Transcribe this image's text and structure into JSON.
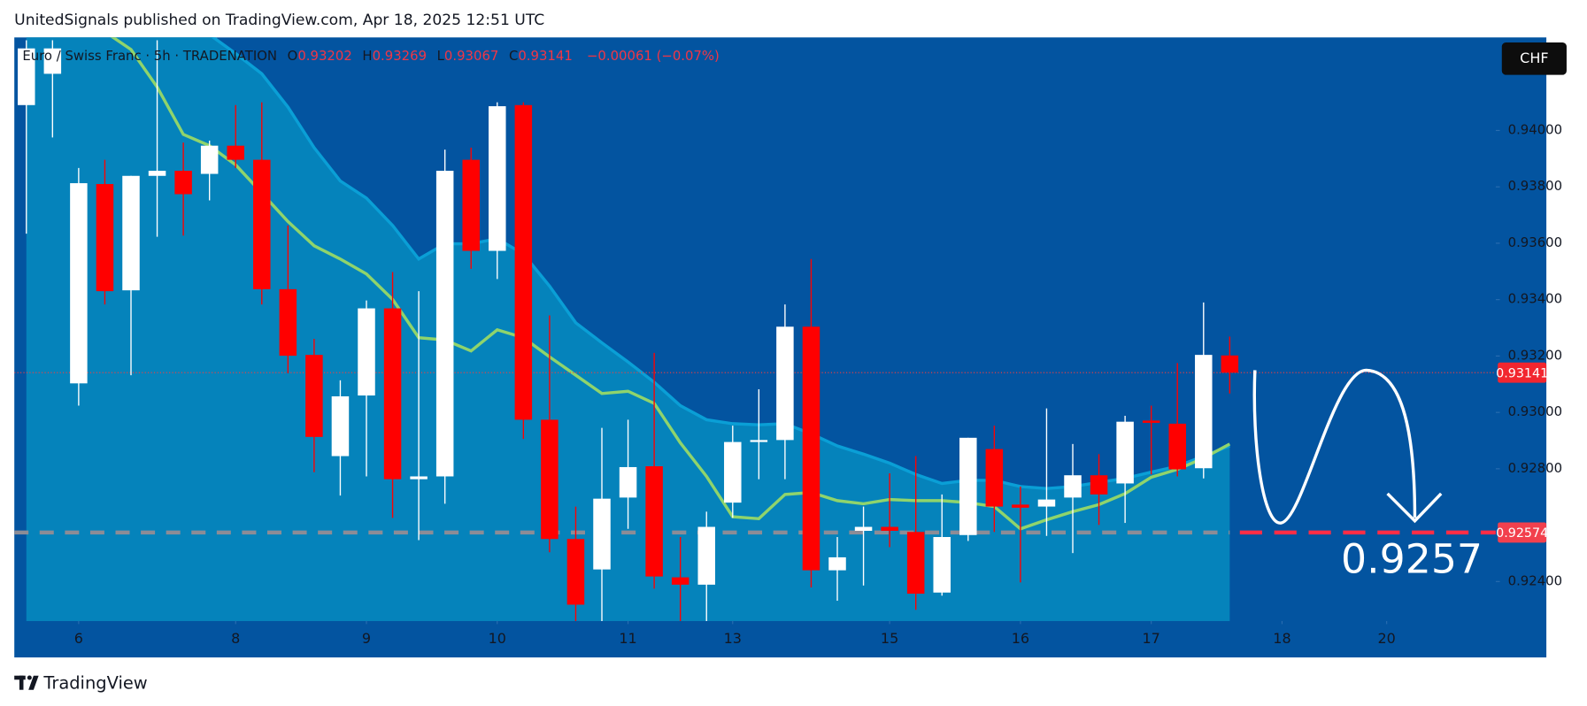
{
  "header": "UnitedSignals published on TradingView.com, Apr 18, 2025 12:51 UTC",
  "footer": "TradingView",
  "chart_data": {
    "type": "candlestick",
    "title": "Euro / Swiss Franc · 5h · TRADENATION",
    "ohlc_labels": [
      "O",
      "H",
      "L",
      "C"
    ],
    "change": "−0.00061 (−0.07%)",
    "currency": "CHF",
    "up_color": "#ffffff",
    "down_color": "#ff0000",
    "x": [
      0,
      1,
      2,
      3,
      4,
      5,
      6,
      7,
      8,
      9,
      10,
      11,
      12,
      13,
      14,
      15,
      16,
      17,
      18,
      19,
      20,
      21,
      22,
      23,
      24,
      25,
      26,
      27,
      28,
      29,
      30,
      31,
      32,
      33,
      34,
      35,
      36,
      37,
      38,
      39,
      40,
      41,
      42,
      43,
      44,
      45,
      46
    ],
    "open": [
      0.9409,
      0.94201,
      0.93103,
      0.9381,
      0.93433,
      0.93839,
      0.93857,
      0.93846,
      0.93946,
      0.93896,
      0.93437,
      0.93204,
      0.92845,
      0.9306,
      0.93369,
      0.92763,
      0.92773,
      0.93896,
      0.93573,
      0.9409,
      0.92974,
      0.92551,
      0.92443,
      0.92698,
      0.92809,
      0.92415,
      0.92389,
      0.9268,
      0.92895,
      0.92902,
      0.93304,
      0.9244,
      0.9258,
      0.92594,
      0.92576,
      0.92361,
      0.92565,
      0.9287,
      0.92673,
      0.92666,
      0.92698,
      0.92777,
      0.92748,
      0.92971,
      0.9296,
      0.92802,
      0.93202
    ],
    "high": [
      0.9432,
      0.9432,
      0.93867,
      0.93896,
      0.93839,
      0.9432,
      0.93957,
      0.93964,
      0.9409,
      0.941,
      0.93663,
      0.93261,
      0.93114,
      0.93397,
      0.93498,
      0.9343,
      0.93932,
      0.93939,
      0.941,
      0.941,
      0.93344,
      0.92666,
      0.92945,
      0.92974,
      0.93211,
      0.92558,
      0.92648,
      0.92953,
      0.93082,
      0.93383,
      0.93544,
      0.92558,
      0.92666,
      0.92784,
      0.92845,
      0.92709,
      0.9291,
      0.92953,
      0.92737,
      0.93014,
      0.92888,
      0.92852,
      0.92988,
      0.93024,
      0.93175,
      0.9339,
      0.93269
    ],
    "low": [
      0.93634,
      0.93975,
      0.93024,
      0.93383,
      0.93132,
      0.93623,
      0.93627,
      0.93752,
      0.93867,
      0.93383,
      0.93139,
      0.92788,
      0.92705,
      0.92773,
      0.92626,
      0.92547,
      0.92676,
      0.93509,
      0.93473,
      0.92906,
      0.92504,
      0.9226,
      0.9226,
      0.92587,
      0.92375,
      0.9226,
      0.9226,
      0.92626,
      0.92763,
      0.92763,
      0.92379,
      0.92332,
      0.92386,
      0.92522,
      0.923,
      0.9235,
      0.92544,
      0.92576,
      0.92397,
      0.92562,
      0.92501,
      0.92601,
      0.92608,
      0.9278,
      0.92773,
      0.92766,
      0.93067
    ],
    "close": [
      0.94291,
      0.94291,
      0.93813,
      0.9343,
      0.93839,
      0.93857,
      0.93774,
      0.93946,
      0.93896,
      0.93437,
      0.93201,
      0.92913,
      0.93057,
      0.93369,
      0.92763,
      0.92773,
      0.93857,
      0.93573,
      0.94086,
      0.92974,
      0.92551,
      0.92318,
      0.92694,
      0.92806,
      0.92418,
      0.92389,
      0.92594,
      0.92895,
      0.92902,
      0.93304,
      0.9244,
      0.92486,
      0.92594,
      0.9258,
      0.92357,
      0.92558,
      0.9291,
      0.92666,
      0.92662,
      0.92691,
      0.92777,
      0.92709,
      0.92967,
      0.92963,
      0.92798,
      0.93204,
      0.93141
    ],
    "moving_average": {
      "color": "#8fd46c",
      "values": [
        0.9456,
        0.9449,
        0.9442,
        0.9435,
        0.94287,
        0.94154,
        0.93986,
        0.93946,
        0.93878,
        0.93778,
        0.93677,
        0.93591,
        0.93544,
        0.93491,
        0.93401,
        0.93265,
        0.93257,
        0.93218,
        0.93293,
        0.93265,
        0.93197,
        0.93132,
        0.93067,
        0.93075,
        0.93032,
        0.92892,
        0.92773,
        0.9263,
        0.92623,
        0.92709,
        0.92716,
        0.92687,
        0.92676,
        0.92691,
        0.92687,
        0.92687,
        0.9268,
        0.92666,
        0.92587,
        0.92619,
        0.92648,
        0.92673,
        0.92712,
        0.9277,
        0.92798,
        0.92838,
        0.92888
      ]
    },
    "band": {
      "color": "#0a9fd6",
      "fill": "#0583bb",
      "values": [
        0.9476,
        0.947,
        0.9464,
        0.9458,
        0.9452,
        0.9446,
        0.944,
        0.9434,
        0.94273,
        0.94201,
        0.94083,
        0.93939,
        0.93821,
        0.9376,
        0.93663,
        0.93544,
        0.93598,
        0.93598,
        0.93616,
        0.93562,
        0.93448,
        0.93318,
        0.93247,
        0.93179,
        0.93107,
        0.93024,
        0.92974,
        0.9296,
        0.92956,
        0.9296,
        0.92924,
        0.92881,
        0.92852,
        0.9282,
        0.9278,
        0.92748,
        0.92759,
        0.92759,
        0.92737,
        0.9273,
        0.92737,
        0.92752,
        0.92766,
        0.92788,
        0.92809,
        0.92845,
        0.92881
      ]
    },
    "target": {
      "value": 0.92574,
      "annotation": "0.9257"
    },
    "background": "#0354a0",
    "grid": false,
    "xlim": [
      -0.46,
      56.17
    ],
    "xticks": [
      {
        "value": 2,
        "label": "6"
      },
      {
        "value": 8,
        "label": "8"
      },
      {
        "value": 13,
        "label": "9"
      },
      {
        "value": 18,
        "label": "10"
      },
      {
        "value": 23,
        "label": "11"
      },
      {
        "value": 27,
        "label": "13"
      },
      {
        "value": 33,
        "label": "15"
      },
      {
        "value": 38,
        "label": "16"
      },
      {
        "value": 43,
        "label": "17"
      },
      {
        "value": 48,
        "label": "18"
      },
      {
        "value": 52,
        "label": "20"
      }
    ],
    "ylim": [
      0.9226,
      0.9433
    ],
    "yticks": [
      {
        "value": 0.924,
        "label": "0.92400"
      },
      {
        "value": 0.928,
        "label": "0.92800"
      },
      {
        "value": 0.93,
        "label": "0.93000"
      },
      {
        "value": 0.932,
        "label": "0.93200"
      },
      {
        "value": 0.934,
        "label": "0.93400"
      },
      {
        "value": 0.936,
        "label": "0.93600"
      },
      {
        "value": 0.938,
        "label": "0.93800"
      },
      {
        "value": 0.94,
        "label": "0.94000"
      }
    ]
  }
}
